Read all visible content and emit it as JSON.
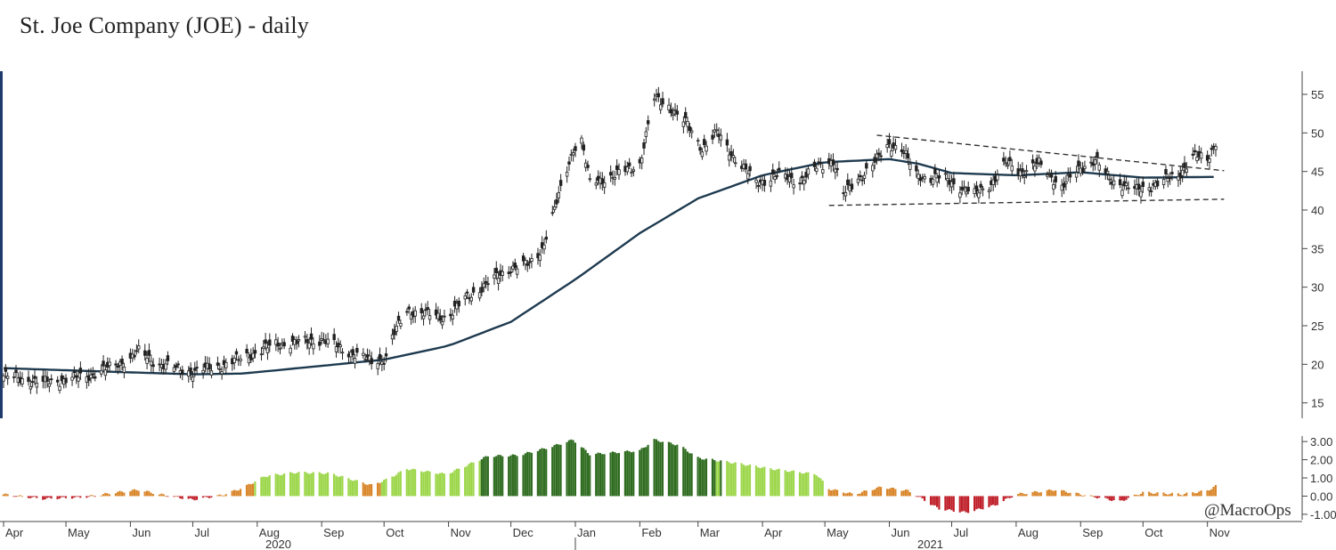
{
  "title": "St. Joe Company (JOE) - daily",
  "watermark": "@MacroOps",
  "colors": {
    "candle": "#222222",
    "moving_average": "#1e3a4f",
    "trendline": "#333333",
    "osc_light_green": "#9cd64a",
    "osc_dark_green": "#2e6b1f",
    "osc_orange": "#d9862a",
    "osc_red": "#c0202a"
  },
  "chart_data": [
    {
      "type": "candlestick",
      "panel": "price",
      "x_axis": {
        "tick_labels": [
          "Apr",
          "May",
          "Jun",
          "Jul",
          "Aug",
          "Sep",
          "Oct",
          "Nov",
          "Dec",
          "Jan",
          "Feb",
          "Mar",
          "Apr",
          "May",
          "Jun",
          "Jul",
          "Aug",
          "Sep",
          "Oct",
          "Nov"
        ],
        "year_labels": [
          "2020",
          "2021"
        ]
      },
      "y_axis": {
        "ticks": [
          15,
          20,
          25,
          30,
          35,
          40,
          45,
          50,
          55
        ],
        "range": [
          13,
          58
        ],
        "position": "right"
      },
      "price_anchors": [
        [
          "2020-04-01",
          18.5
        ],
        [
          "2020-04-20",
          17.6
        ],
        [
          "2020-05-10",
          18.4
        ],
        [
          "2020-05-20",
          19.3
        ],
        [
          "2020-06-01",
          20.8
        ],
        [
          "2020-06-05",
          21.6
        ],
        [
          "2020-06-15",
          20.0
        ],
        [
          "2020-07-01",
          19.0
        ],
        [
          "2020-07-15",
          19.8
        ],
        [
          "2020-07-31",
          21.5
        ],
        [
          "2020-08-10",
          22.6
        ],
        [
          "2020-08-20",
          22.8
        ],
        [
          "2020-09-01",
          23.2
        ],
        [
          "2020-09-15",
          21.5
        ],
        [
          "2020-09-25",
          20.4
        ],
        [
          "2020-10-02",
          20.8
        ],
        [
          "2020-10-05",
          23.5
        ],
        [
          "2020-10-12",
          27.0
        ],
        [
          "2020-10-31",
          26.0
        ],
        [
          "2020-11-09",
          28.5
        ],
        [
          "2020-11-20",
          30.5
        ],
        [
          "2020-12-01",
          32.5
        ],
        [
          "2020-12-10",
          33.0
        ],
        [
          "2020-12-16",
          35.0
        ],
        [
          "2020-12-22",
          40.0
        ],
        [
          "2020-12-31",
          48.0
        ],
        [
          "2021-01-04",
          49.0
        ],
        [
          "2021-01-08",
          43.5
        ],
        [
          "2021-01-20",
          44.5
        ],
        [
          "2021-02-01",
          46.0
        ],
        [
          "2021-02-08",
          54.5
        ],
        [
          "2021-02-15",
          53.5
        ],
        [
          "2021-02-24",
          51.0
        ],
        [
          "2021-03-03",
          48.0
        ],
        [
          "2021-03-10",
          50.0
        ],
        [
          "2021-03-18",
          47.0
        ],
        [
          "2021-03-29",
          43.5
        ],
        [
          "2021-04-08",
          44.5
        ],
        [
          "2021-04-19",
          43.8
        ],
        [
          "2021-04-27",
          45.5
        ],
        [
          "2021-05-05",
          46.5
        ],
        [
          "2021-05-10",
          42.0
        ],
        [
          "2021-05-17",
          44.0
        ],
        [
          "2021-05-26",
          46.5
        ],
        [
          "2021-06-01",
          48.5
        ],
        [
          "2021-06-07",
          48.0
        ],
        [
          "2021-06-14",
          44.5
        ],
        [
          "2021-06-28",
          44.0
        ],
        [
          "2021-07-12",
          42.0
        ],
        [
          "2021-07-20",
          43.5
        ],
        [
          "2021-07-27",
          46.0
        ],
        [
          "2021-08-04",
          45.0
        ],
        [
          "2021-08-12",
          46.0
        ],
        [
          "2021-08-23",
          43.0
        ],
        [
          "2021-09-01",
          45.5
        ],
        [
          "2021-09-08",
          46.5
        ],
        [
          "2021-09-15",
          44.0
        ],
        [
          "2021-09-28",
          42.5
        ],
        [
          "2021-10-08",
          43.5
        ],
        [
          "2021-10-18",
          44.5
        ],
        [
          "2021-10-25",
          47.0
        ],
        [
          "2021-11-01",
          46.5
        ],
        [
          "2021-11-05",
          49.0
        ]
      ],
      "moving_average": {
        "anchors": [
          [
            "2020-04-01",
            19.5
          ],
          [
            "2020-05-15",
            19.1
          ],
          [
            "2020-07-01",
            18.7
          ],
          [
            "2020-07-25",
            18.8
          ],
          [
            "2020-09-01",
            19.8
          ],
          [
            "2020-10-01",
            20.6
          ],
          [
            "2020-11-01",
            22.4
          ],
          [
            "2020-12-01",
            25.5
          ],
          [
            "2021-01-01",
            31.0
          ],
          [
            "2021-02-01",
            37.0
          ],
          [
            "2021-03-01",
            41.5
          ],
          [
            "2021-04-01",
            44.5
          ],
          [
            "2021-05-01",
            46.2
          ],
          [
            "2021-06-01",
            46.6
          ],
          [
            "2021-06-15",
            46.0
          ],
          [
            "2021-07-01",
            44.8
          ],
          [
            "2021-08-01",
            44.5
          ],
          [
            "2021-09-01",
            44.9
          ],
          [
            "2021-10-01",
            44.2
          ],
          [
            "2021-11-05",
            44.3
          ]
        ]
      },
      "trendlines": [
        {
          "style": "dashed",
          "points": [
            [
              "2021-05-26",
              49.7
            ],
            [
              "2021-11-09",
              45.1
            ]
          ]
        },
        {
          "style": "dashed",
          "points": [
            [
              "2021-05-03",
              40.6
            ],
            [
              "2021-11-09",
              41.4
            ]
          ]
        }
      ]
    },
    {
      "type": "bar",
      "panel": "oscillator",
      "y_axis": {
        "ticks": [
          3.0,
          2.0,
          1.0,
          0.0,
          -1.0
        ],
        "tick_labels": [
          "3.00",
          "2.00",
          "1.00",
          "0.00",
          "-1.00"
        ],
        "range": [
          -1.3,
          3.3
        ],
        "position": "right"
      },
      "value_anchors": [
        [
          "2020-04-01",
          0.1
        ],
        [
          "2020-04-20",
          -0.15
        ],
        [
          "2020-05-10",
          -0.05
        ],
        [
          "2020-05-25",
          0.2
        ],
        [
          "2020-06-05",
          0.35
        ],
        [
          "2020-06-15",
          0.1
        ],
        [
          "2020-07-01",
          -0.2
        ],
        [
          "2020-07-15",
          0.05
        ],
        [
          "2020-07-25",
          0.45
        ],
        [
          "2020-08-05",
          1.1
        ],
        [
          "2020-08-20",
          1.3
        ],
        [
          "2020-09-05",
          1.25
        ],
        [
          "2020-09-25",
          0.6
        ],
        [
          "2020-10-02",
          0.9
        ],
        [
          "2020-10-12",
          1.5
        ],
        [
          "2020-10-31",
          1.2
        ],
        [
          "2020-11-10",
          1.7
        ],
        [
          "2020-11-20",
          2.2
        ],
        [
          "2020-12-05",
          2.25
        ],
        [
          "2020-12-20",
          2.7
        ],
        [
          "2020-12-31",
          3.1
        ],
        [
          "2021-01-08",
          2.3
        ],
        [
          "2021-02-01",
          2.5
        ],
        [
          "2021-02-08",
          3.1
        ],
        [
          "2021-02-20",
          2.8
        ],
        [
          "2021-03-01",
          2.1
        ],
        [
          "2021-03-20",
          1.8
        ],
        [
          "2021-04-05",
          1.5
        ],
        [
          "2021-04-27",
          1.2
        ],
        [
          "2021-05-03",
          0.4
        ],
        [
          "2021-05-15",
          0.1
        ],
        [
          "2021-05-28",
          0.5
        ],
        [
          "2021-06-10",
          0.3
        ],
        [
          "2021-06-25",
          -0.7
        ],
        [
          "2021-07-08",
          -0.9
        ],
        [
          "2021-07-22",
          -0.5
        ],
        [
          "2021-08-01",
          0.1
        ],
        [
          "2021-08-20",
          0.35
        ],
        [
          "2021-09-01",
          0.1
        ],
        [
          "2021-09-20",
          -0.3
        ],
        [
          "2021-10-01",
          0.2
        ],
        [
          "2021-10-20",
          0.1
        ],
        [
          "2021-11-01",
          0.3
        ],
        [
          "2021-11-05",
          0.55
        ]
      ],
      "color_by_value": [
        {
          "max": 0,
          "color": "osc_red"
        },
        {
          "max": 0.75,
          "color": "osc_orange"
        },
        {
          "max": 1.95,
          "color": "osc_light_green"
        },
        {
          "max": 99,
          "color": "osc_dark_green"
        }
      ]
    }
  ]
}
